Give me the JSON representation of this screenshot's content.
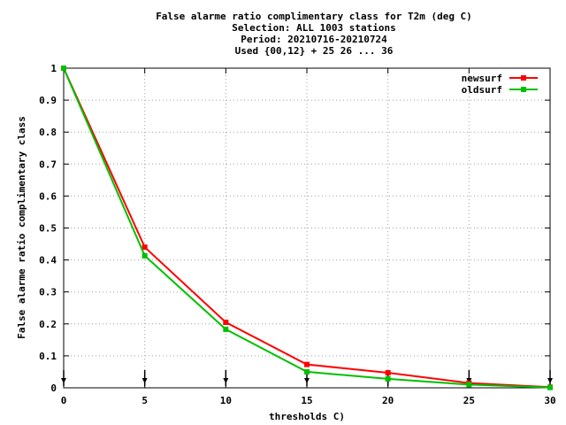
{
  "chart_data": {
    "type": "line",
    "title_lines": [
      "False alarme ratio complimentary class  for T2m (deg C)",
      "Selection: ALL   1003 stations",
      "Period: 20210716-20210724",
      "Used {00,12} + 25 26 ... 36"
    ],
    "xlabel": "thresholds C)",
    "ylabel": "False alarme ratio complimentary class",
    "xlim": [
      0,
      30
    ],
    "ylim": [
      0,
      1
    ],
    "x_ticks": [
      0,
      5,
      10,
      15,
      20,
      25,
      30
    ],
    "y_ticks": [
      0,
      0.1,
      0.2,
      0.3,
      0.4,
      0.5,
      0.6,
      0.7,
      0.8,
      0.9,
      1
    ],
    "x_tick_labels": [
      "0",
      "5",
      "10",
      "15",
      "20",
      "25",
      "30"
    ],
    "y_tick_labels": [
      "0",
      "0.1",
      "0.2",
      "0.3",
      "0.4",
      "0.5",
      "0.6",
      "0.7",
      "0.8",
      "0.9",
      "1"
    ],
    "grid": true,
    "legend_position": "top-right",
    "x": [
      0,
      5,
      10,
      15,
      20,
      25,
      30
    ],
    "series": [
      {
        "name": "newsurf",
        "color": "#ff0000",
        "values": [
          1.0,
          0.44,
          0.205,
          0.073,
          0.047,
          0.015,
          0.002
        ]
      },
      {
        "name": "oldsurf",
        "color": "#00c000",
        "values": [
          1.0,
          0.413,
          0.183,
          0.05,
          0.028,
          0.01,
          0.001
        ]
      }
    ]
  }
}
